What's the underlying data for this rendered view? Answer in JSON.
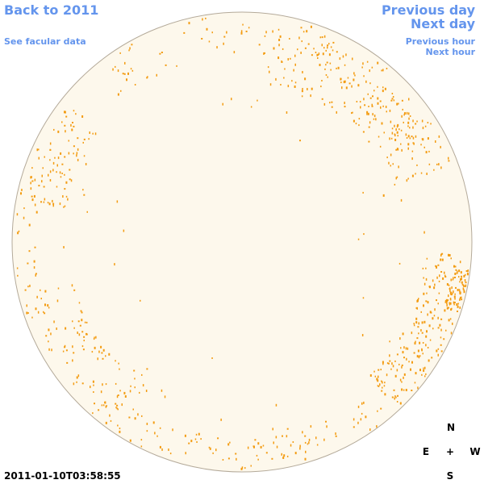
{
  "nav": {
    "back_to_year": "Back to 2011",
    "see_facular_data": "See facular data",
    "previous_day": "Previous day",
    "next_day": "Next day",
    "previous_hour": "Previous hour",
    "next_hour": "Next hour"
  },
  "compass": {
    "north": "N",
    "south": "S",
    "east": "E",
    "west": "W",
    "center": "+"
  },
  "timestamp": "2011-01-10T03:58:55",
  "colors": {
    "link": "#6495ed",
    "disk_fill": "#fdf8ec",
    "disk_stroke": "#b4aa9a",
    "facula": "#f39c12"
  },
  "facular_regions": [
    {
      "name": "north-east-limb",
      "density": "high"
    },
    {
      "name": "east-limb",
      "density": "medium"
    },
    {
      "name": "west-limb",
      "density": "high"
    },
    {
      "name": "south-limb",
      "density": "medium"
    },
    {
      "name": "north-limb",
      "density": "low"
    }
  ]
}
